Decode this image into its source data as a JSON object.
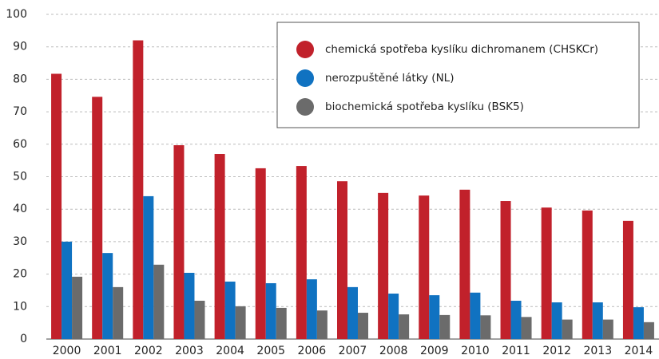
{
  "chart_data": {
    "type": "bar",
    "categories": [
      "2000",
      "2001",
      "2002",
      "2003",
      "2004",
      "2005",
      "2006",
      "2007",
      "2008",
      "2009",
      "2010",
      "2011",
      "2012",
      "2013",
      "2014"
    ],
    "series": [
      {
        "name": "chemická spotřeba kyslíku dichromanem (CHSKCr)",
        "color": "#c1212b",
        "values": [
          81.7,
          74.6,
          92,
          59.7,
          57,
          52.6,
          53.3,
          48.6,
          45,
          44.2,
          46,
          42.5,
          40.5,
          39.6,
          36.4
        ]
      },
      {
        "name": "nerozpuštěné látky (NL)",
        "color": "#1072c1",
        "values": [
          30,
          26.5,
          44,
          20.4,
          17.7,
          17.2,
          18.4,
          16,
          14,
          13.5,
          14.3,
          11.8,
          11.3,
          11.3,
          9.8
        ]
      },
      {
        "name": "biochemická spotřeba kyslíku (BSK5)",
        "color": "#6b6b6b",
        "values": [
          19.2,
          16,
          22.9,
          11.8,
          10.1,
          9.6,
          8.8,
          8.1,
          7.6,
          7.4,
          7.3,
          6.8,
          6,
          6,
          5.2
        ]
      }
    ],
    "ylim": [
      0,
      100
    ],
    "yticks": [
      0,
      10,
      20,
      30,
      40,
      50,
      60,
      70,
      80,
      90,
      100
    ],
    "grid": true,
    "legend": "top-right"
  }
}
